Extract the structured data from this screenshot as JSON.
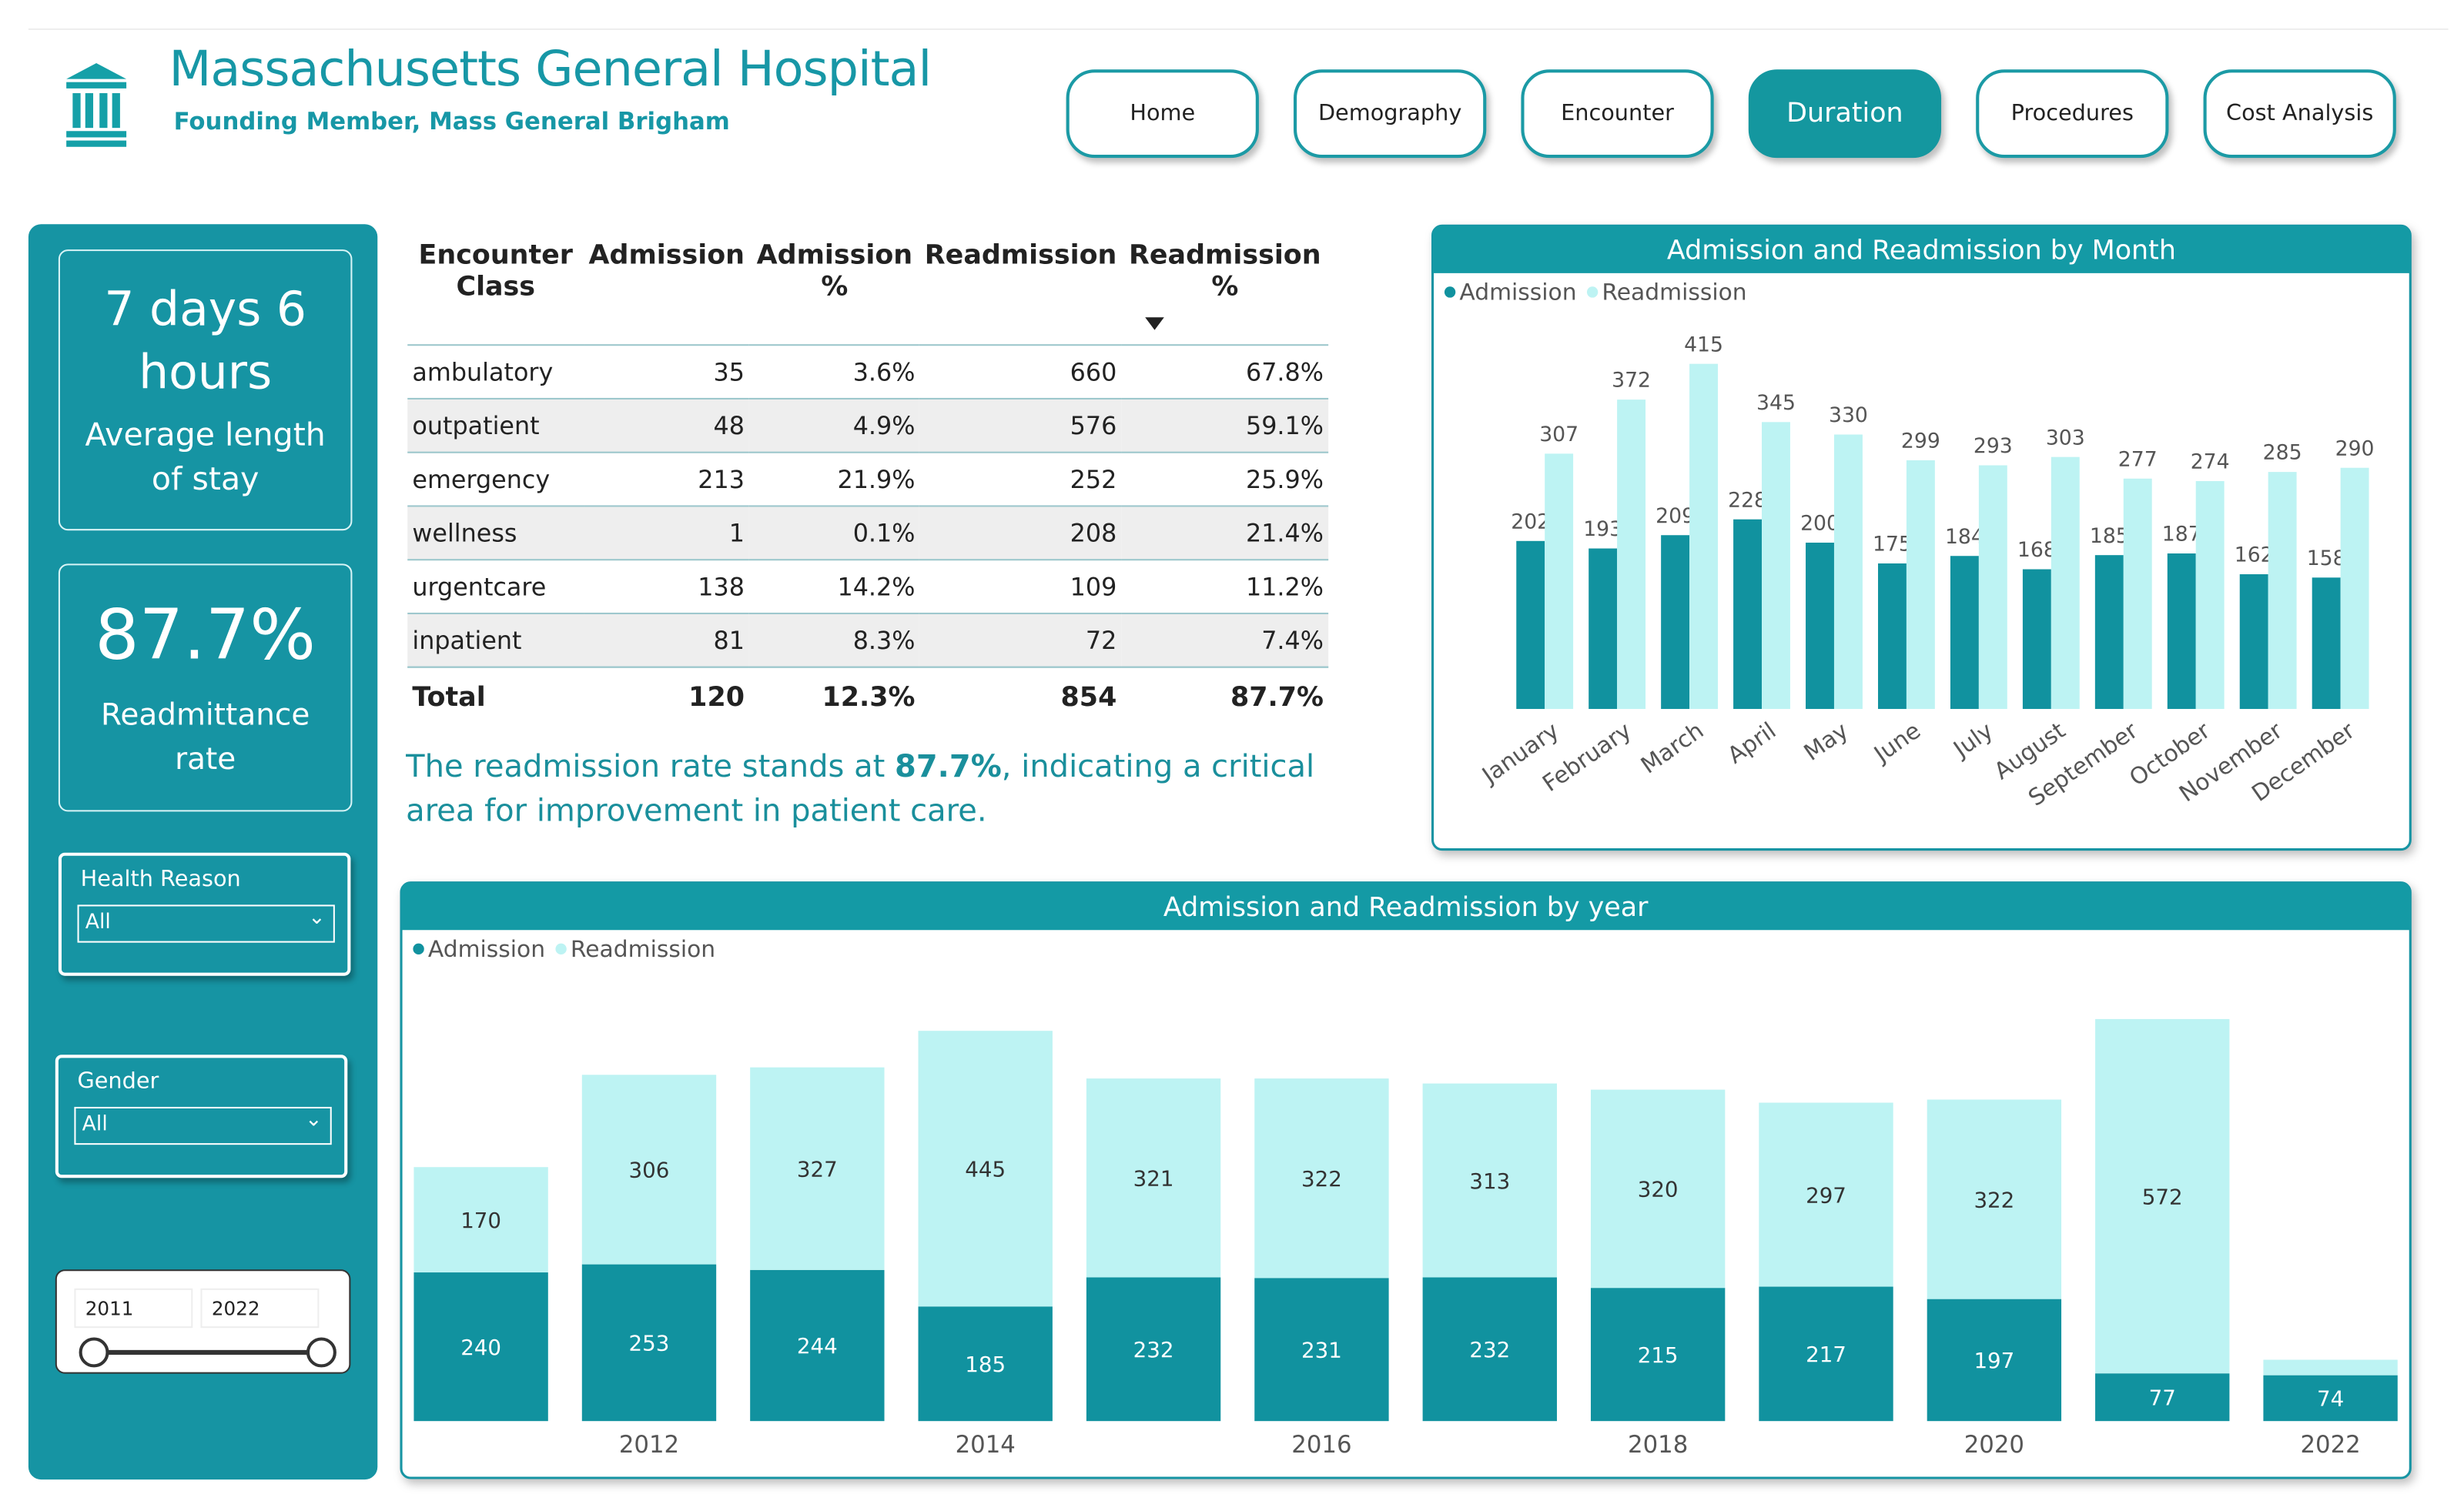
{
  "header": {
    "title": "Massachusetts General Hospital",
    "subtitle": "Founding Member, Mass General Brigham"
  },
  "nav": {
    "items": [
      "Home",
      "Demography",
      "Encounter",
      "Duration",
      "Procedures",
      "Cost Analysis"
    ],
    "active": "Duration"
  },
  "kpis": [
    {
      "value": "7 days 6 hours",
      "label": "Average length of stay"
    },
    {
      "value": "87.7%",
      "label": "Readmittance rate"
    }
  ],
  "filters": [
    {
      "label": "Health Reason",
      "selected": "All"
    },
    {
      "label": "Gender",
      "selected": "All"
    }
  ],
  "date_range": {
    "from": "2011",
    "to": "2022"
  },
  "table": {
    "columns": [
      "Encounter Class",
      "Admission",
      "Admission %",
      "Readmission",
      "Readmission %"
    ],
    "rows": [
      [
        "ambulatory",
        "35",
        "3.6%",
        "660",
        "67.8%"
      ],
      [
        "outpatient",
        "48",
        "4.9%",
        "576",
        "59.1%"
      ],
      [
        "emergency",
        "213",
        "21.9%",
        "252",
        "25.9%"
      ],
      [
        "wellness",
        "1",
        "0.1%",
        "208",
        "21.4%"
      ],
      [
        "urgentcare",
        "138",
        "14.2%",
        "109",
        "11.2%"
      ],
      [
        "inpatient",
        "81",
        "8.3%",
        "72",
        "7.4%"
      ]
    ],
    "total": [
      "Total",
      "120",
      "12.3%",
      "854",
      "87.7%"
    ]
  },
  "note": {
    "parts": [
      "The readmission rate stands at ",
      "87.7%",
      ", indicating a critical area for improvement in patient care."
    ]
  },
  "chart_data": [
    {
      "type": "bar",
      "title": "Admission and Readmission by Month",
      "stacked": false,
      "categories": [
        "January",
        "February",
        "March",
        "April",
        "May",
        "June",
        "July",
        "August",
        "September",
        "October",
        "November",
        "December"
      ],
      "series": [
        {
          "name": "Admission",
          "color": "#11929f",
          "values": [
            202,
            193,
            209,
            228,
            200,
            175,
            184,
            168,
            185,
            187,
            162,
            158
          ]
        },
        {
          "name": "Readmission",
          "color": "#bdf3f3",
          "values": [
            307,
            372,
            415,
            345,
            330,
            299,
            293,
            303,
            277,
            274,
            285,
            290
          ]
        }
      ],
      "ylim": [
        0,
        450
      ],
      "legend": "top-left"
    },
    {
      "type": "bar",
      "title": "Admission and Readmission by year",
      "stacked": true,
      "categories": [
        null,
        "2012",
        null,
        "2014",
        null,
        "2016",
        null,
        "2018",
        null,
        "2020",
        null,
        "2022"
      ],
      "series": [
        {
          "name": "Admission",
          "color": "#11929f",
          "values": [
            240,
            253,
            244,
            185,
            232,
            231,
            232,
            215,
            217,
            197,
            77,
            74
          ]
        },
        {
          "name": "Readmission",
          "color": "#bdf3f3",
          "values": [
            170,
            306,
            327,
            445,
            321,
            322,
            313,
            320,
            297,
            322,
            572,
            25
          ]
        }
      ],
      "ylim": [
        0,
        650
      ],
      "legend": "top-left"
    }
  ]
}
